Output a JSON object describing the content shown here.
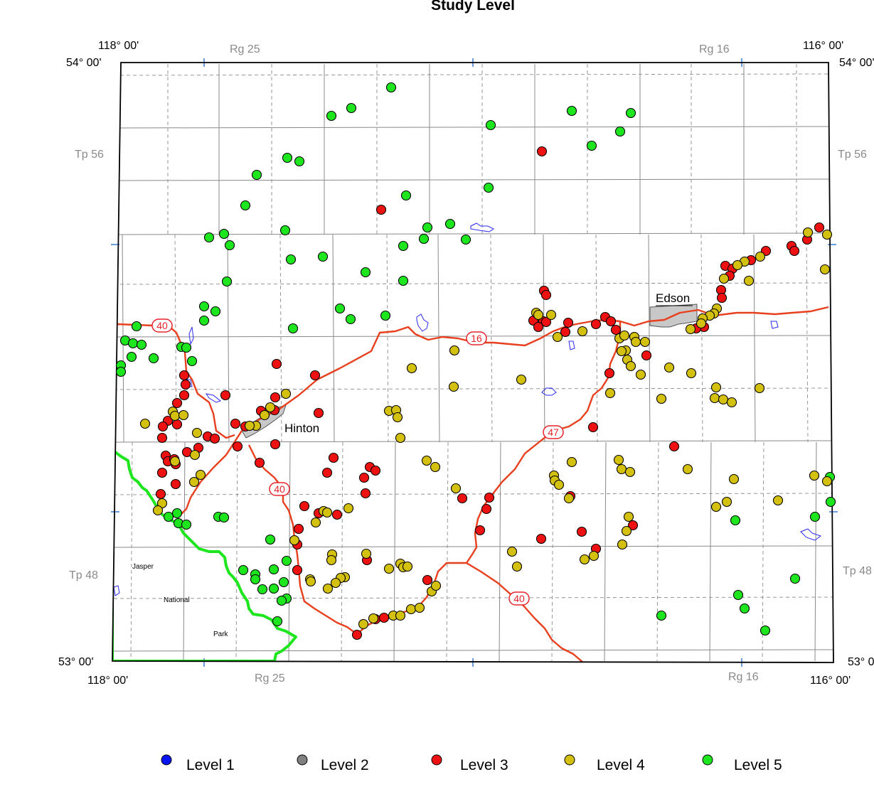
{
  "title": "Study Level",
  "coords": {
    "top_left_lon": "118° 00'",
    "top_left_lat": "54° 00'",
    "top_right_lon": "116° 00'",
    "top_right_lat": "54° 00'",
    "bottom_left_lat": "53° 00'",
    "bottom_left_lon": "118° 00'",
    "bottom_right_lat": "53° 00'",
    "bottom_right_lon": "116° 00'"
  },
  "grid_labels": {
    "rg25_top": "Rg 25",
    "rg16_top": "Rg 16",
    "rg25_bottom": "Rg 25",
    "rg16_bottom": "Rg 16",
    "tp56_left": "Tp 56",
    "tp56_right": "Tp 56",
    "tp48_left": "Tp 48",
    "tp48_right": "Tp 48"
  },
  "towns": {
    "edson": "Edson",
    "hinton": "Hinton"
  },
  "park": {
    "line1": "Jasper",
    "line2": "National",
    "line3": "Park"
  },
  "highways": {
    "hwy40_a": "40",
    "hwy40_b": "40",
    "hwy40_c": "40",
    "hwy16": "16",
    "hwy47": "47"
  },
  "legend": [
    {
      "label": "Level 1",
      "color": "#0a14f0"
    },
    {
      "label": "Level 2",
      "color": "#808080"
    },
    {
      "label": "Level 3",
      "color": "#ee1111"
    },
    {
      "label": "Level 4",
      "color": "#d4c00e"
    },
    {
      "label": "Level 5",
      "color": "#1ee61e"
    }
  ],
  "colors": {
    "highway": "#e8401e",
    "park_boundary": "#1ee61e",
    "water": "#2a2af0",
    "town_fill": "#c8c8c8"
  }
}
